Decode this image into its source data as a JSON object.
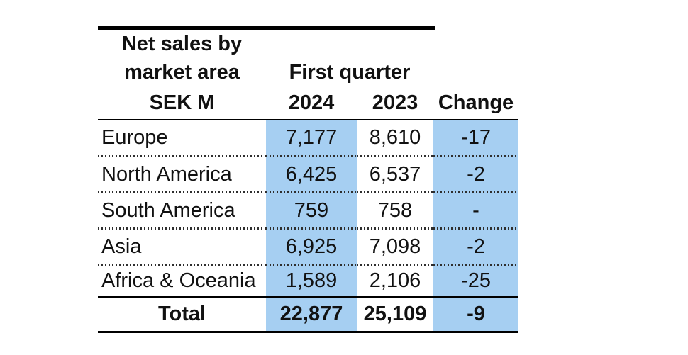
{
  "header": {
    "title_line1": "Net sales by",
    "title_line2": "market area",
    "quarter_label": "First quarter",
    "unit_label": "SEK M",
    "year_2024": "2024",
    "year_2023": "2023",
    "change_label": "Change"
  },
  "chart_data": {
    "type": "table",
    "title": "Net sales by market area",
    "unit": "SEK M",
    "group_header": "First quarter",
    "columns": [
      "SEK M",
      "2024",
      "2023",
      "Change"
    ],
    "rows": [
      [
        "Europe",
        "7,177",
        "8,610",
        "-17"
      ],
      [
        "North America",
        "6,425",
        "6,537",
        "-2"
      ],
      [
        "South America",
        "759",
        "758",
        "-"
      ],
      [
        "Asia",
        "6,925",
        "7,098",
        "-2"
      ],
      [
        "Africa & Oceania",
        "1,589",
        "2,106",
        "-25"
      ]
    ],
    "total": [
      "Total",
      "22,877",
      "25,109",
      "-9"
    ],
    "highlight_columns": [
      "2024",
      "Change"
    ],
    "highlight_color": "#a6cff2",
    "layout": "highlighted 2024 and Change columns, dotted row separators, bold total row"
  }
}
